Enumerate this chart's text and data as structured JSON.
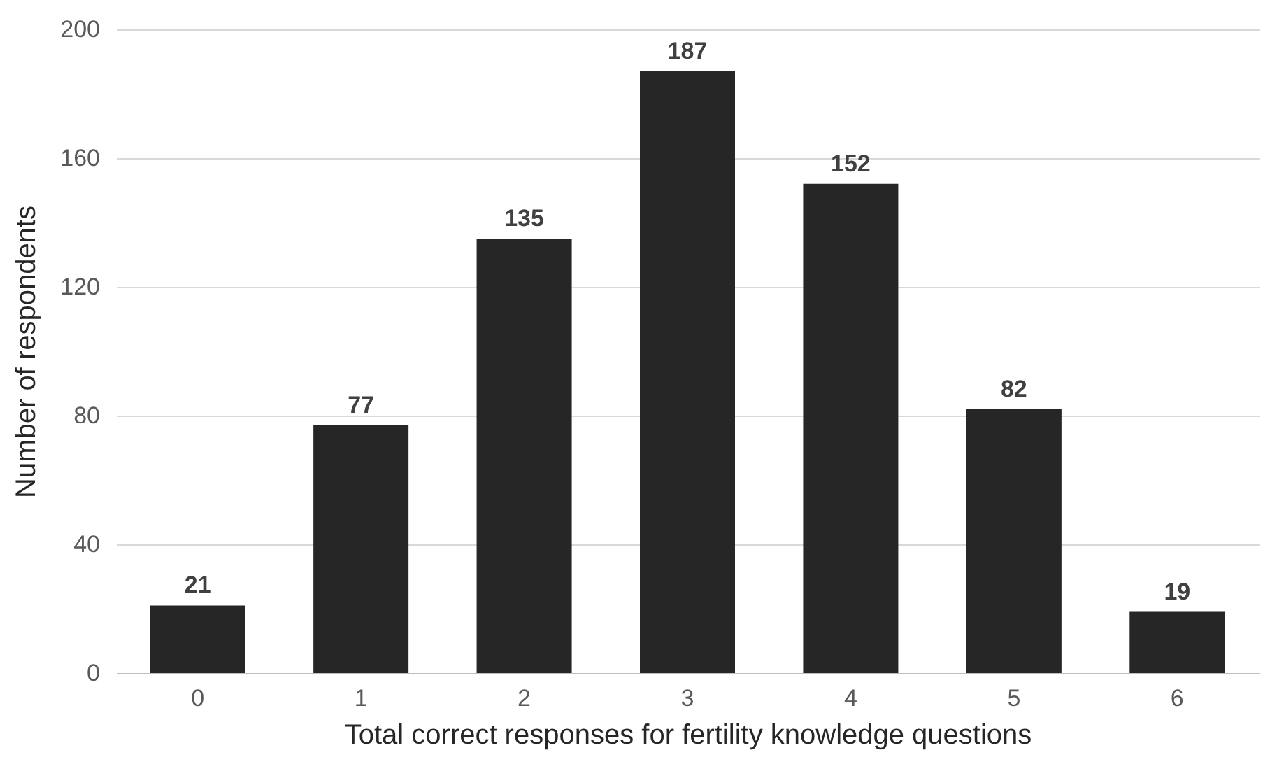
{
  "chart_data": {
    "type": "bar",
    "xlabel": "Total correct responses for fertility knowledge questions",
    "ylabel": "Number of respondents",
    "categories": [
      "0",
      "1",
      "2",
      "3",
      "4",
      "5",
      "6"
    ],
    "values": [
      21,
      77,
      135,
      187,
      152,
      82,
      19
    ],
    "color": "#262626",
    "ylim": [
      0,
      200
    ],
    "yticks": [
      0,
      40,
      80,
      120,
      160,
      200
    ],
    "grid": "y",
    "data_labels": true
  }
}
